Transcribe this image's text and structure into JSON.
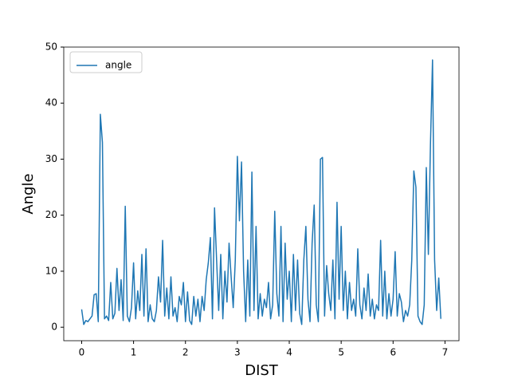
{
  "chart_data": {
    "type": "line",
    "xlabel": "DIST",
    "ylabel": "Angle",
    "x": [
      0,
      0.04,
      0.08,
      0.12,
      0.16,
      0.2,
      0.24,
      0.28,
      0.32,
      0.36,
      0.4,
      0.44,
      0.48,
      0.52,
      0.56,
      0.6,
      0.64,
      0.68,
      0.72,
      0.76,
      0.8,
      0.84,
      0.88,
      0.92,
      0.96,
      1,
      1.04,
      1.08,
      1.12,
      1.16,
      1.2,
      1.24,
      1.28,
      1.32,
      1.36,
      1.4,
      1.44,
      1.48,
      1.52,
      1.56,
      1.6,
      1.64,
      1.68,
      1.72,
      1.76,
      1.8,
      1.84,
      1.88,
      1.92,
      1.96,
      2,
      2.04,
      2.08,
      2.12,
      2.16,
      2.2,
      2.24,
      2.28,
      2.32,
      2.36,
      2.4,
      2.44,
      2.48,
      2.52,
      2.56,
      2.6,
      2.64,
      2.68,
      2.72,
      2.76,
      2.8,
      2.84,
      2.88,
      2.92,
      2.96,
      3,
      3.04,
      3.08,
      3.12,
      3.16,
      3.2,
      3.24,
      3.28,
      3.32,
      3.36,
      3.4,
      3.44,
      3.48,
      3.52,
      3.56,
      3.6,
      3.64,
      3.68,
      3.72,
      3.76,
      3.8,
      3.84,
      3.88,
      3.92,
      3.96,
      4,
      4.04,
      4.08,
      4.12,
      4.16,
      4.2,
      4.24,
      4.28,
      4.32,
      4.36,
      4.4,
      4.44,
      4.48,
      4.52,
      4.56,
      4.6,
      4.64,
      4.68,
      4.72,
      4.76,
      4.8,
      4.84,
      4.88,
      4.92,
      4.96,
      5,
      5.04,
      5.08,
      5.12,
      5.16,
      5.2,
      5.24,
      5.28,
      5.32,
      5.36,
      5.4,
      5.44,
      5.48,
      5.52,
      5.56,
      5.6,
      5.64,
      5.68,
      5.72,
      5.76,
      5.8,
      5.84,
      5.88,
      5.92,
      5.96,
      6,
      6.04,
      6.08,
      6.12,
      6.16,
      6.2,
      6.24,
      6.28,
      6.32,
      6.36,
      6.4,
      6.44,
      6.48,
      6.52,
      6.56,
      6.6,
      6.64,
      6.68,
      6.72,
      6.76,
      6.8,
      6.84,
      6.88,
      6.92
    ],
    "series": [
      {
        "name": "angle",
        "color": "#1f77b4",
        "values": [
          3.2,
          0.5,
          1.2,
          1.0,
          1.5,
          2.0,
          5.8,
          6.0,
          1.0,
          38.0,
          33.0,
          1.5,
          2.0,
          1.2,
          8.0,
          1.5,
          2.5,
          10.5,
          3.0,
          8.5,
          1.2,
          21.6,
          2.0,
          1.0,
          3.5,
          11.5,
          1.5,
          6.5,
          3.0,
          13.0,
          2.0,
          14.0,
          1.0,
          4.0,
          1.5,
          1.0,
          3.0,
          9.0,
          4.5,
          15.5,
          2.0,
          7.0,
          1.5,
          9.0,
          2.0,
          3.5,
          1.0,
          5.5,
          4.0,
          8.0,
          1.0,
          6.3,
          1.2,
          0.5,
          5.5,
          2.0,
          5.0,
          1.0,
          5.5,
          3.0,
          8.5,
          11.5,
          16.0,
          1.5,
          21.3,
          12.0,
          3.0,
          13.0,
          1.5,
          10.0,
          4.5,
          15.0,
          9.0,
          3.5,
          12.0,
          30.5,
          19.0,
          29.5,
          10.0,
          1.0,
          12.0,
          2.0,
          27.7,
          3.0,
          18.0,
          1.5,
          6.0,
          2.0,
          5.0,
          3.5,
          8.0,
          1.5,
          4.0,
          20.7,
          6.0,
          2.0,
          18.0,
          1.0,
          15.0,
          5.0,
          10,
          1,
          13,
          3,
          12,
          2.5,
          0.5,
          12,
          18,
          5,
          1,
          15,
          21.8,
          4,
          1,
          30,
          30.3,
          2,
          11,
          6,
          3,
          12,
          1.5,
          22.3,
          5,
          18,
          3,
          10,
          1.5,
          8,
          3,
          5,
          2,
          14,
          4,
          1.5,
          7,
          3,
          9.5,
          2,
          5,
          1.5,
          4,
          3,
          15.5,
          2,
          10,
          1.5,
          6,
          2,
          5,
          13.5,
          2,
          6,
          4.5,
          1,
          3,
          2,
          4,
          12,
          27.9,
          25,
          2,
          1,
          0.5,
          4,
          28.5,
          13,
          32.6,
          47.7,
          12,
          3,
          8.8,
          1.5
        ]
      }
    ],
    "xlim": [
      -0.345,
      7.27
    ],
    "ylim": [
      -2.4,
      50
    ],
    "xticks": [
      0,
      1,
      2,
      3,
      4,
      5,
      6,
      7
    ],
    "yticks": [
      0,
      10,
      20,
      30,
      40,
      50
    ],
    "legend": "upper left"
  }
}
